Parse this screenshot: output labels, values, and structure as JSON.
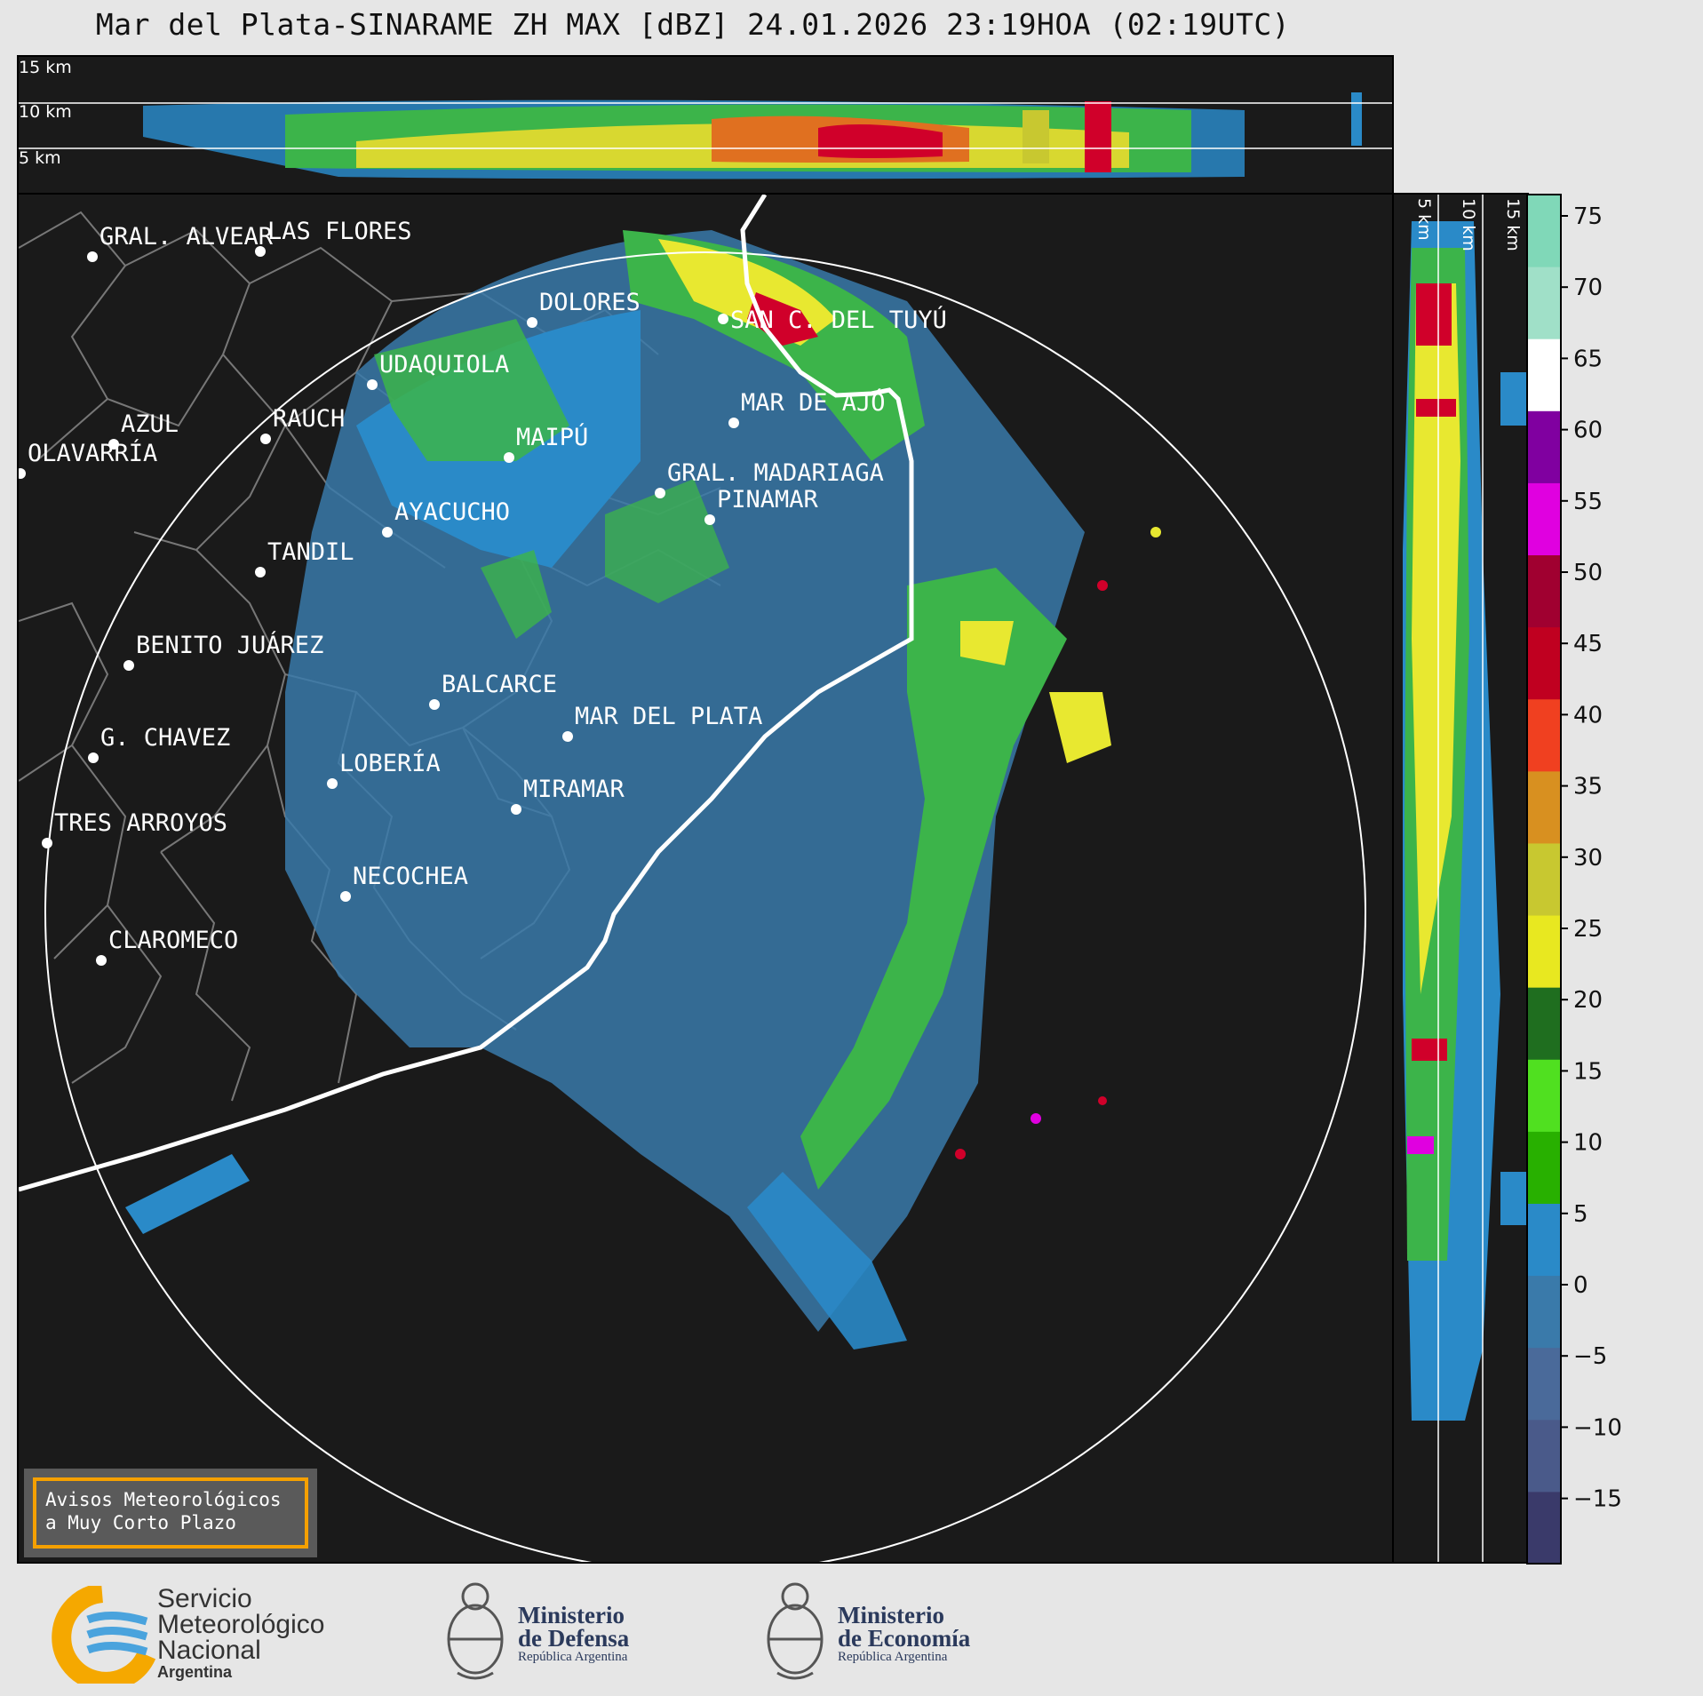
{
  "title": "Mar del Plata-SINARAME ZH MAX [dBZ] 24.01.2026 23:19HOA (02:19UTC)",
  "height_labels": {
    "top": [
      "15 km",
      "10 km",
      "5 km"
    ],
    "side": [
      "5 km",
      "10 km",
      "15 km"
    ]
  },
  "colorbar": {
    "ticks": [
      "75",
      "70",
      "65",
      "60",
      "55",
      "50",
      "45",
      "40",
      "35",
      "30",
      "25",
      "20",
      "15",
      "10",
      "5",
      "0",
      "−5",
      "−10",
      "−15"
    ],
    "unit": "dBZ",
    "colors": [
      "#3a3a6a",
      "#4a5a8a",
      "#4a6a9a",
      "#3a7aaa",
      "#2a8ac8",
      "#28b000",
      "#50e020",
      "#1f6e1f",
      "#e8e820",
      "#c8c830",
      "#d89020",
      "#f04020",
      "#c00020",
      "#a00030",
      "#e000e0",
      "#8000a0",
      "#ffffff",
      "#a0e0c8",
      "#80d8b8"
    ]
  },
  "cities": [
    {
      "name": "GRAL. ALVEAR"
    },
    {
      "name": "LAS FLORES"
    },
    {
      "name": "DOLORES"
    },
    {
      "name": "SAN C. DEL TUYÚ"
    },
    {
      "name": "UDAQUIOLA"
    },
    {
      "name": "MAR DE AJÓ"
    },
    {
      "name": "AZUL"
    },
    {
      "name": "RAUCH"
    },
    {
      "name": "OLAVARRÍA"
    },
    {
      "name": "MAIPÚ"
    },
    {
      "name": "GRAL. MADARIAGA"
    },
    {
      "name": "PINAMAR"
    },
    {
      "name": "AYACUCHO"
    },
    {
      "name": "TANDIL"
    },
    {
      "name": "BENITO JUÁREZ"
    },
    {
      "name": "BALCARCE"
    },
    {
      "name": "MAR DEL PLATA"
    },
    {
      "name": "G. CHAVEZ"
    },
    {
      "name": "LOBERÍA"
    },
    {
      "name": "MIRAMAR"
    },
    {
      "name": "TRES ARROYOS"
    },
    {
      "name": "NECOCHEA"
    },
    {
      "name": "CLAROMECO"
    }
  ],
  "avisos": {
    "line1": "Avisos Meteorológicos",
    "line2": "a Muy Corto Plazo"
  },
  "logos": {
    "smn": {
      "line1": "Servicio",
      "line2": "Meteorológico",
      "line3": "Nacional",
      "sub": "Argentina"
    },
    "defensa": {
      "line1": "Ministerio",
      "line2": "de Defensa",
      "sub": "República Argentina"
    },
    "economia": {
      "line1": "Ministerio",
      "line2": "de Economía",
      "sub": "República Argentina"
    }
  }
}
